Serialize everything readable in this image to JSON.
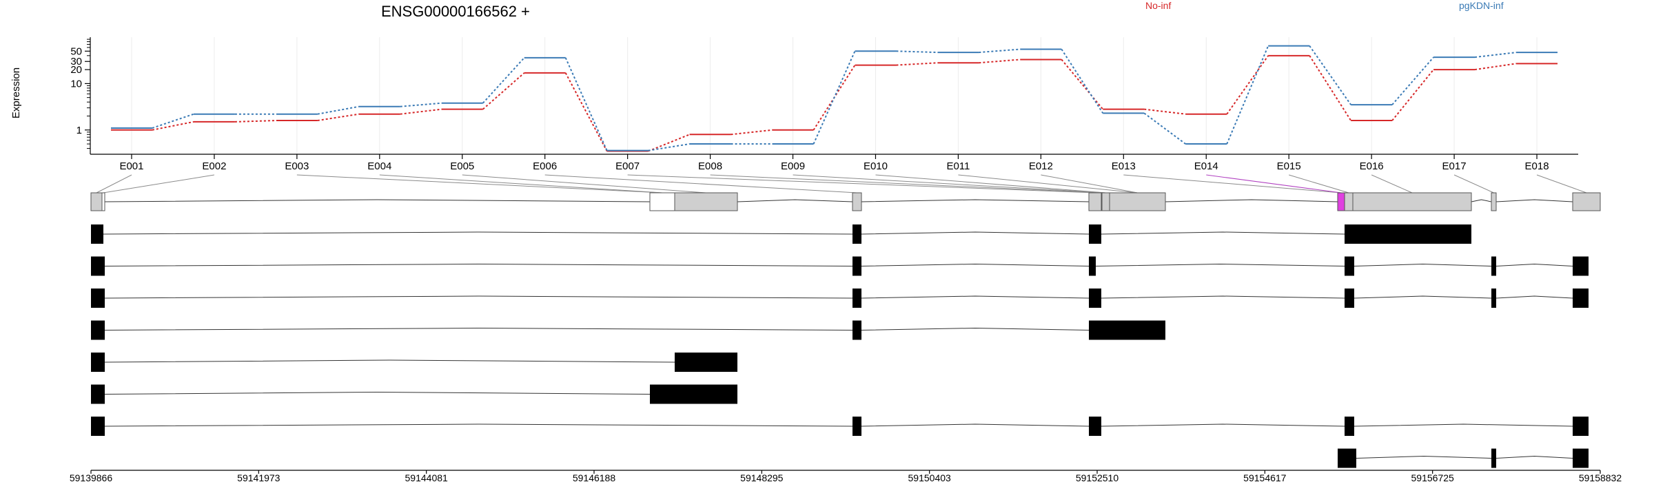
{
  "chart_data": {
    "type": "line",
    "title": "ENSG00000166562 +",
    "ylabel": "Expression",
    "yscale": "log",
    "ylim": [
      0.3,
      100
    ],
    "y_ticks": [
      1,
      10,
      20,
      30,
      50
    ],
    "y_tick_labels": [
      "1",
      "10",
      "20",
      "30",
      "50"
    ],
    "grid": true,
    "legend_position": "top",
    "categories": [
      "E001",
      "E002",
      "E003",
      "E004",
      "E005",
      "E006",
      "E007",
      "E008",
      "E009",
      "E010",
      "E011",
      "E012",
      "E013",
      "E014",
      "E015",
      "E016",
      "E017",
      "E018"
    ],
    "series": [
      {
        "name": "No-inf",
        "color": "#d62728",
        "values": [
          1.0,
          1.5,
          1.6,
          2.2,
          2.8,
          17,
          0.35,
          0.8,
          1.0,
          25,
          28,
          33,
          2.8,
          2.2,
          40,
          1.6,
          20,
          27
        ]
      },
      {
        "name": "pgKDN-inf",
        "color": "#3a7ab5",
        "values": [
          1.1,
          2.2,
          2.2,
          3.2,
          3.8,
          36,
          0.36,
          0.5,
          0.5,
          50,
          47,
          55,
          2.3,
          0.5,
          65,
          3.5,
          37,
          47
        ]
      }
    ],
    "genomic_axis": {
      "tick_labels": [
        "59139866",
        "59141973",
        "59144081",
        "59146188",
        "59148295",
        "59150403",
        "59152510",
        "59154617",
        "59156725",
        "59158832"
      ]
    },
    "gene_model": {
      "exons": [
        {
          "id": "E001",
          "type": "noncoding"
        },
        {
          "id": "E002",
          "type": "boundary"
        },
        {
          "id": "E003",
          "type": "coding"
        },
        {
          "id": "E004",
          "type": "noncoding"
        },
        {
          "id": "E005",
          "type": "coding"
        },
        {
          "id": "E006",
          "type": "coding"
        },
        {
          "id": "E007",
          "type": "coding"
        },
        {
          "id": "E008",
          "type": "boundary"
        },
        {
          "id": "E009",
          "type": "coding"
        },
        {
          "id": "E010",
          "type": "coding"
        },
        {
          "id": "E011",
          "type": "boundary"
        },
        {
          "id": "E012",
          "type": "coding"
        },
        {
          "id": "E013",
          "type": "coding"
        },
        {
          "id": "E014",
          "type": "highlighted"
        },
        {
          "id": "E015",
          "type": "boundary"
        },
        {
          "id": "E016",
          "type": "coding"
        },
        {
          "id": "E017",
          "type": "coding"
        },
        {
          "id": "E018",
          "type": "coding"
        }
      ],
      "highlight_color": "#e040e0",
      "transcript_count": 8
    }
  }
}
